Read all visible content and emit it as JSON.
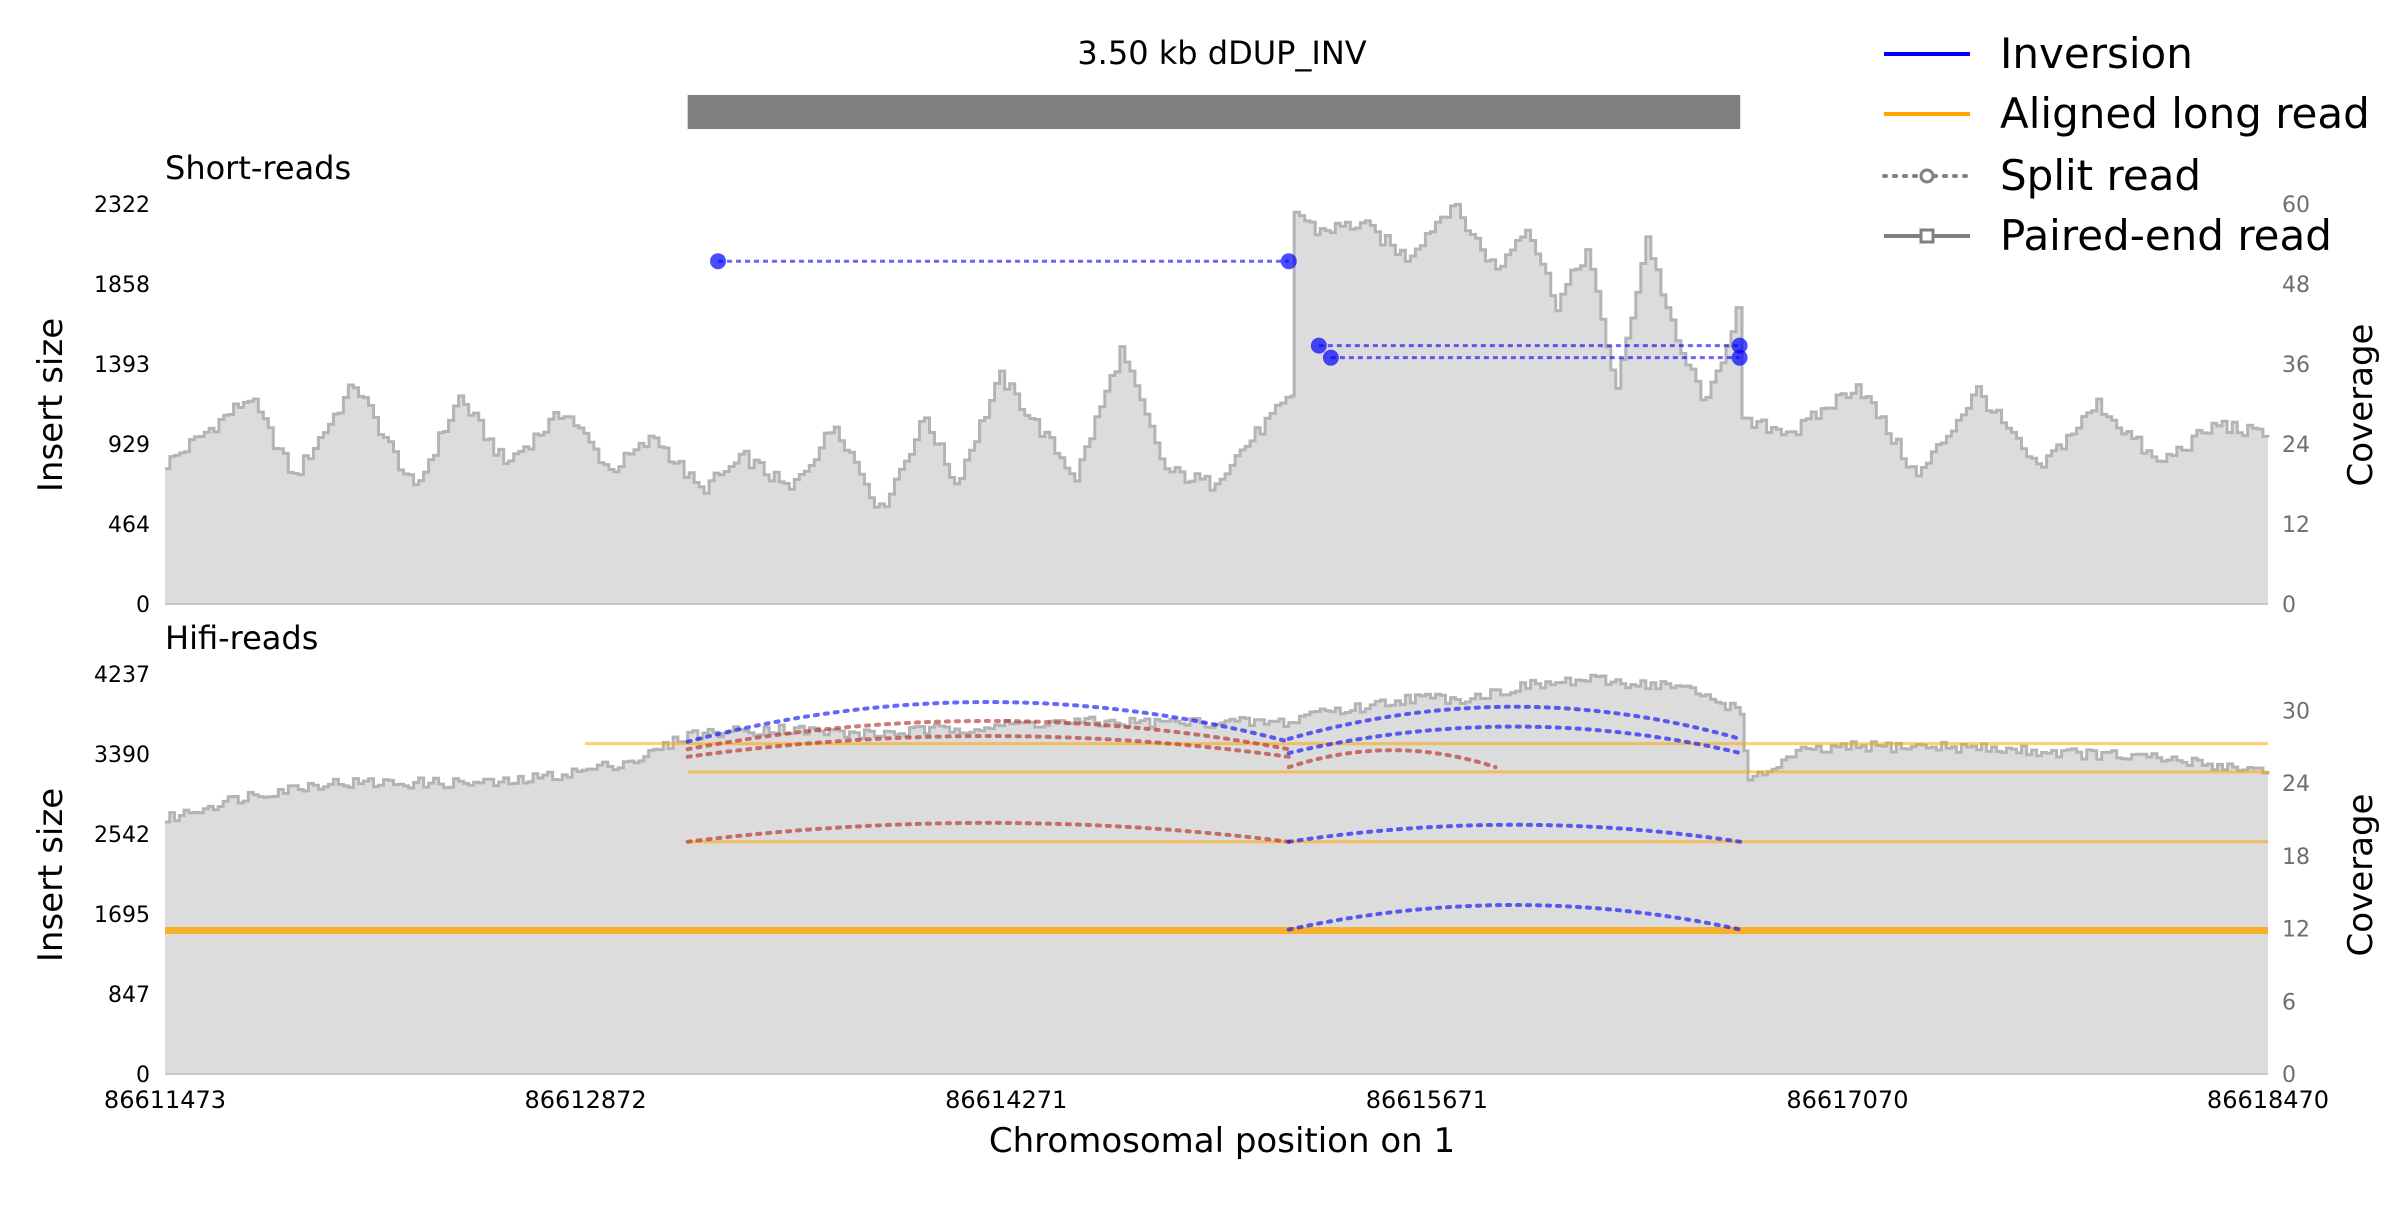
{
  "chart_data": {
    "type": "area",
    "title": "3.50 kb dDUP_INV",
    "sv_span": [
      86613212,
      86616714
    ],
    "xlabel": "Chromosomal position on 1",
    "xlim": [
      86611473,
      86618470
    ],
    "xticks": [
      "86611473",
      "86612872",
      "86614271",
      "86615671",
      "86617070",
      "86618470"
    ],
    "legend": {
      "placement": "top-right",
      "entries": [
        {
          "name": "Inversion",
          "style": "line",
          "color": "#0000ff"
        },
        {
          "name": "Aligned long read",
          "style": "line",
          "color": "#ffa500"
        },
        {
          "name": "Split read",
          "style": "dotted-circle",
          "color": "#808080"
        },
        {
          "name": "Paired-end read",
          "style": "solid-square",
          "color": "#808080"
        }
      ]
    },
    "colors": {
      "coverage_fill": "#dcdcdc",
      "coverage_line": "#b4b4b4",
      "inversion": "#0000ff",
      "aligned_long_read": "#ffa500",
      "deletion_split": "#b22222",
      "sv_bar": "#808080"
    },
    "panels": [
      {
        "name": "Short-reads",
        "ylabel": "Insert size",
        "ylabel_right": "Coverage",
        "yticks_left": [
          "0",
          "464",
          "929",
          "1393",
          "1858",
          "2322"
        ],
        "ylim_left": [
          0,
          2322
        ],
        "yticks_right": [
          "0",
          "12",
          "24",
          "36",
          "48",
          "60"
        ],
        "ylim_right": [
          0,
          60
        ],
        "coverage": {
          "x": [
            86611473,
            86611750,
            86611900,
            86612100,
            86612300,
            86612450,
            86612600,
            86612800,
            86612950,
            86613100,
            86613250,
            86613400,
            86613550,
            86613700,
            86613850,
            86614000,
            86614100,
            86614250,
            86614500,
            86614650,
            86614800,
            86614950,
            86615150,
            86615220,
            86615230,
            86615300,
            86615450,
            86615600,
            86615750,
            86615900,
            86616000,
            86616100,
            86616200,
            86616300,
            86616400,
            86616500,
            86616600,
            86616700,
            86616720,
            86616900,
            86617100,
            86617300,
            86617500,
            86617700,
            86617900,
            86618100,
            86618300,
            86618470
          ],
          "values": [
            21,
            31,
            19,
            33,
            17,
            31,
            21,
            29,
            20,
            25,
            17,
            22,
            17,
            27,
            14,
            28,
            18,
            34,
            19,
            38,
            20,
            18,
            28,
            31,
            59,
            56,
            57,
            52,
            60,
            50,
            57,
            45,
            53,
            32,
            55,
            39,
            30,
            44,
            27,
            26,
            33,
            19,
            32,
            20,
            30,
            21,
            27,
            25
          ]
        },
        "split_reads": [
          {
            "x1": 86613313,
            "x2": 86615212,
            "insert_size": 1990,
            "type": "Inversion"
          },
          {
            "x1": 86615312,
            "x2": 86616712,
            "insert_size": 1500,
            "type": "Inversion"
          },
          {
            "x1": 86615352,
            "x2": 86616712,
            "insert_size": 1430,
            "type": "Inversion"
          }
        ]
      },
      {
        "name": "Hifi-reads",
        "ylabel": "Insert size",
        "ylabel_right": "Coverage",
        "yticks_left": [
          "0",
          "847",
          "1695",
          "2542",
          "3390",
          "4237"
        ],
        "ylim_left": [
          0,
          4237
        ],
        "yticks_right": [
          "0",
          "6",
          "12",
          "18",
          "24",
          "30"
        ],
        "ylim_right": [
          0,
          33
        ],
        "coverage": {
          "x": [
            86611473,
            86611600,
            86611750,
            86612000,
            86612200,
            86612400,
            86612600,
            86612860,
            86613050,
            86613212,
            86613500,
            86613800,
            86614100,
            86614400,
            86614700,
            86615000,
            86615212,
            86615300,
            86615400,
            86615600,
            86615800,
            86616000,
            86616200,
            86616500,
            86616714,
            86616740,
            86616900,
            86617100,
            86617400,
            86617800,
            86618100,
            86618470
          ],
          "values": [
            21,
            22,
            23,
            24,
            24,
            24,
            24,
            25,
            26,
            28,
            28.5,
            28,
            28.5,
            29,
            29,
            29,
            29,
            30,
            30,
            31,
            31,
            32,
            32.5,
            32,
            30,
            24,
            26.5,
            27,
            27,
            26.5,
            26,
            25
          ]
        },
        "aligned_long_reads": [
          {
            "x1": 86611473,
            "x2": 86618470,
            "insert_size": 1520
          },
          {
            "x1": 86612870,
            "x2": 86618470,
            "insert_size": 3500
          },
          {
            "x1": 86613212,
            "x2": 86618470,
            "insert_size": 3200
          },
          {
            "x1": 86613212,
            "x2": 86618470,
            "insert_size": 2460
          }
        ],
        "split_reads": [
          {
            "x1": 86613212,
            "x2": 86615212,
            "insert_size": 3520,
            "arc_height": 210,
            "type": "Inversion"
          },
          {
            "x1": 86613212,
            "x2": 86615212,
            "insert_size": 3440,
            "arc_height": 150,
            "type": "Deletion"
          },
          {
            "x1": 86613212,
            "x2": 86615212,
            "insert_size": 3360,
            "arc_height": 110,
            "type": "Deletion"
          },
          {
            "x1": 86615212,
            "x2": 86616714,
            "insert_size": 3550,
            "arc_height": 170,
            "type": "Inversion"
          },
          {
            "x1": 86615212,
            "x2": 86616714,
            "insert_size": 3400,
            "arc_height": 140,
            "type": "Inversion"
          },
          {
            "x1": 86615212,
            "x2": 86615900,
            "insert_size": 3250,
            "arc_height": 90,
            "type": "Deletion"
          },
          {
            "x1": 86613212,
            "x2": 86615212,
            "insert_size": 2460,
            "arc_height": 100,
            "type": "Deletion"
          },
          {
            "x1": 86615212,
            "x2": 86616714,
            "insert_size": 2460,
            "arc_height": 90,
            "type": "Inversion"
          },
          {
            "x1": 86615212,
            "x2": 86616714,
            "insert_size": 1530,
            "arc_height": 130,
            "type": "Inversion"
          }
        ]
      }
    ]
  }
}
